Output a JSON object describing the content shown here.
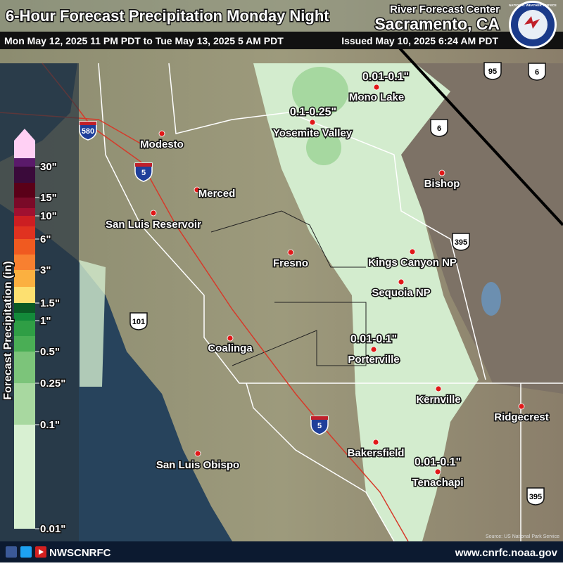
{
  "header": {
    "title": "6-Hour Forecast Precipitation Monday Night",
    "center_line1": "River Forecast Center",
    "center_line2": "Sacramento, CA",
    "valid_period": "Mon May 12, 2025 11 PM PDT to Tue May 13, 2025 5 AM PDT",
    "issued": "Issued May 10, 2025 6:24 AM PDT",
    "logo_text": "NATIONAL WEATHER SERVICE"
  },
  "legend": {
    "title": "Forecast Precipitation (in)",
    "labels": [
      "30\"",
      "15\"",
      "10\"",
      "6\"",
      "3\"",
      "1.5\"",
      "1\"",
      "0.5\"",
      "0.25\"",
      "0.1\"",
      "0.01\""
    ]
  },
  "map": {
    "cities": [
      "Modesto",
      "Merced",
      "San Luis Reservoir",
      "Fresno",
      "Coalinga",
      "San Luis Obispo",
      "Mono Lake",
      "Yosemite Valley",
      "Bishop",
      "Kings Canyon NP",
      "Sequoia NP",
      "Porterville",
      "Kernville",
      "Ridgecrest",
      "Bakersfield",
      "Tenachapi"
    ],
    "precip_labels": [
      "0.01-0.1\"",
      "0.1-0.25\"",
      "0.01-0.1\"",
      "0.01-0.1\""
    ],
    "highways": [
      "580",
      "5",
      "5",
      "101",
      "395",
      "395",
      "95",
      "6",
      "6"
    ],
    "source": "Source: US National Park Service"
  },
  "footer": {
    "social": "NWSCNRFC",
    "url": "www.cnrfc.noaa.gov"
  }
}
